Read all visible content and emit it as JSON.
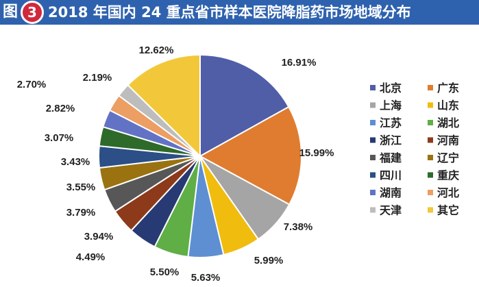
{
  "title": {
    "prefix": "图",
    "badge_number": "3",
    "text": "2018 年国内 24 重点省市样本医院降脂药市场地域分布"
  },
  "colors": {
    "title_bar": "#2f62ae",
    "badge": "#d1283b"
  },
  "chart_data": {
    "type": "pie",
    "title": "2018 年国内 24 重点省市样本医院降脂药市场地域分布",
    "legend_position": "right",
    "slices": [
      {
        "name": "北京",
        "value": 16.91,
        "label": "16.91%",
        "color": "#4f5ea7"
      },
      {
        "name": "广东",
        "value": 15.99,
        "label": "15.99%",
        "color": "#e07c2f"
      },
      {
        "name": "上海",
        "value": 7.38,
        "label": "7.38%",
        "color": "#a5a5a5"
      },
      {
        "name": "山东",
        "value": 5.99,
        "label": "5.99%",
        "color": "#f0bc0e"
      },
      {
        "name": "江苏",
        "value": 5.63,
        "label": "5.63%",
        "color": "#5d8fd2"
      },
      {
        "name": "湖北",
        "value": 5.5,
        "label": "5.50%",
        "color": "#5fae46"
      },
      {
        "name": "浙江",
        "value": 4.49,
        "label": "4.49%",
        "color": "#273a73"
      },
      {
        "name": "河南",
        "value": 3.94,
        "label": "3.94%",
        "color": "#8d3a1b"
      },
      {
        "name": "福建",
        "value": 3.79,
        "label": "3.79%",
        "color": "#575757"
      },
      {
        "name": "辽宁",
        "value": 3.55,
        "label": "3.55%",
        "color": "#9a7210"
      },
      {
        "name": "四川",
        "value": 3.43,
        "label": "3.43%",
        "color": "#2b4f86"
      },
      {
        "name": "重庆",
        "value": 3.07,
        "label": "3.07%",
        "color": "#2e6a2a"
      },
      {
        "name": "湖南",
        "value": 2.82,
        "label": "2.82%",
        "color": "#6273c6"
      },
      {
        "name": "河北",
        "value": 2.7,
        "label": "2.70%",
        "color": "#ec9e63"
      },
      {
        "name": "天津",
        "value": 2.19,
        "label": "2.19%",
        "color": "#bdbdbd"
      },
      {
        "name": "其它",
        "value": 12.62,
        "label": "12.62%",
        "color": "#f2c83a"
      }
    ]
  }
}
